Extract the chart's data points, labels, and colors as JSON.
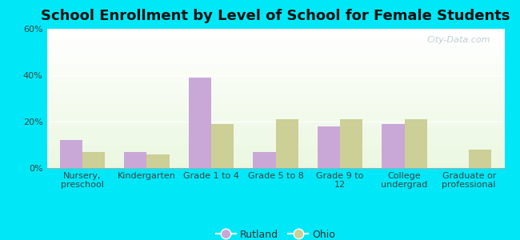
{
  "title": "School Enrollment by Level of School for Female Students",
  "categories": [
    "Nursery,\npreschool",
    "Kindergarten",
    "Grade 1 to 4",
    "Grade 5 to 8",
    "Grade 9 to\n12",
    "College\nundergrad",
    "Graduate or\nprofessional"
  ],
  "rutland_values": [
    12,
    7,
    39,
    7,
    18,
    19,
    0
  ],
  "ohio_values": [
    7,
    6,
    19,
    21,
    21,
    21,
    8
  ],
  "rutland_color": "#c9a8d8",
  "ohio_color": "#cccf96",
  "background_outer": "#00e8f8",
  "ylim": [
    0,
    60
  ],
  "yticks": [
    0,
    20,
    40,
    60
  ],
  "ytick_labels": [
    "0%",
    "20%",
    "40%",
    "60%"
  ],
  "bar_width": 0.35,
  "legend_labels": [
    "Rutland",
    "Ohio"
  ],
  "title_fontsize": 13,
  "tick_fontsize": 8
}
